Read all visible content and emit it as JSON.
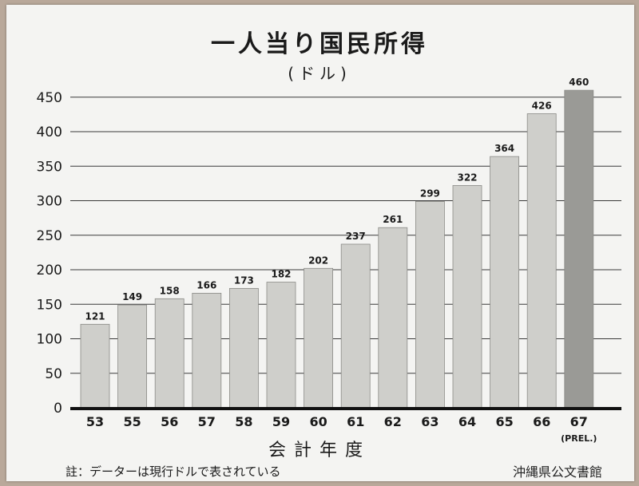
{
  "chart_data": {
    "type": "bar",
    "title": "一人当り国民所得",
    "unit": "(ドル)",
    "xlabel": "会計年度",
    "categories": [
      "53",
      "55",
      "56",
      "57",
      "58",
      "59",
      "60",
      "61",
      "62",
      "63",
      "64",
      "65",
      "66",
      "67"
    ],
    "category_sublabels": [
      "",
      "",
      "",
      "",
      "",
      "",
      "",
      "",
      "",
      "",
      "",
      "",
      "",
      "(PREL.)"
    ],
    "values": [
      121,
      149,
      158,
      166,
      173,
      182,
      202,
      237,
      261,
      299,
      322,
      364,
      426,
      460
    ],
    "ylim": [
      0,
      480
    ],
    "yticks": [
      0,
      50,
      100,
      150,
      200,
      250,
      300,
      350,
      400,
      450
    ],
    "grid": true,
    "bar_color": "#cfcfcb",
    "last_bar_color": "#9a9a96"
  },
  "note": "註：データーは現行ドルで表されている",
  "stamp": "沖縄県公文書館"
}
